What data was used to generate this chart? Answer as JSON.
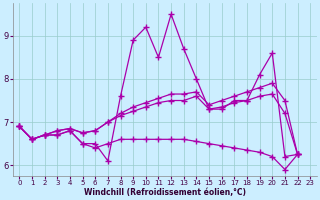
{
  "xlabel": "Windchill (Refroidissement éolien,°C)",
  "background_color": "#cceeff",
  "line_color": "#aa00aa",
  "grid_color": "#99cccc",
  "xlim": [
    -0.5,
    23.5
  ],
  "ylim": [
    5.75,
    9.75
  ],
  "yticks": [
    6,
    7,
    8,
    9
  ],
  "xticks": [
    0,
    1,
    2,
    3,
    4,
    5,
    6,
    7,
    8,
    9,
    10,
    11,
    12,
    13,
    14,
    15,
    16,
    17,
    18,
    19,
    20,
    21,
    22,
    23
  ],
  "series": [
    [
      6.9,
      6.6,
      6.7,
      6.7,
      6.8,
      6.5,
      6.5,
      6.1,
      7.6,
      8.9,
      9.2,
      8.5,
      9.5,
      8.7,
      8.0,
      7.3,
      7.3,
      7.5,
      7.5,
      8.1,
      8.6,
      6.2,
      6.25
    ],
    [
      6.9,
      6.6,
      6.7,
      6.8,
      6.85,
      6.75,
      6.8,
      7.0,
      7.2,
      7.35,
      7.45,
      7.55,
      7.65,
      7.65,
      7.7,
      7.4,
      7.5,
      7.6,
      7.7,
      7.8,
      7.9,
      7.5,
      6.25
    ],
    [
      6.9,
      6.6,
      6.7,
      6.8,
      6.85,
      6.75,
      6.8,
      7.0,
      7.15,
      7.25,
      7.35,
      7.45,
      7.5,
      7.5,
      7.6,
      7.3,
      7.35,
      7.45,
      7.5,
      7.6,
      7.65,
      7.2,
      6.25
    ],
    [
      6.9,
      6.6,
      6.7,
      6.7,
      6.8,
      6.5,
      6.4,
      6.5,
      6.6,
      6.6,
      6.6,
      6.6,
      6.6,
      6.6,
      6.55,
      6.5,
      6.45,
      6.4,
      6.35,
      6.3,
      6.2,
      5.9,
      6.25
    ]
  ]
}
